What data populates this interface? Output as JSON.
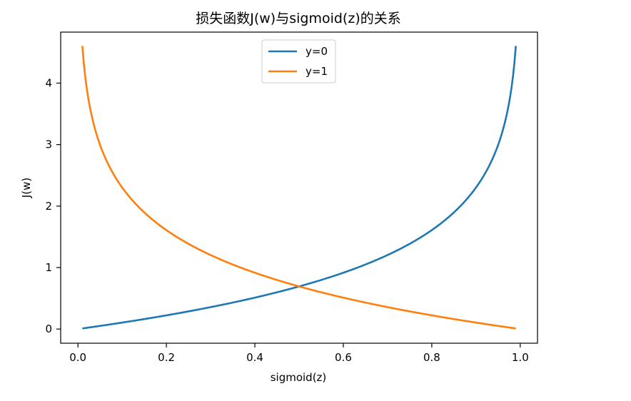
{
  "chart_data": {
    "type": "line",
    "title": "损失函数J(w)与sigmoid(z)的关系",
    "xlabel": "sigmoid(z)",
    "ylabel": "J(w)",
    "xlim": [
      -0.039,
      1.039
    ],
    "ylim": [
      -0.23,
      4.83
    ],
    "xticks": [
      0.0,
      0.2,
      0.4,
      0.6,
      0.8,
      1.0
    ],
    "xtick_labels": [
      "0.0",
      "0.2",
      "0.4",
      "0.6",
      "0.8",
      "1.0"
    ],
    "yticks": [
      0,
      1,
      2,
      3,
      4
    ],
    "ytick_labels": [
      "0",
      "1",
      "2",
      "3",
      "4"
    ],
    "grid": false,
    "legend": {
      "position": "top-center",
      "entries": [
        "y=0",
        "y=1"
      ]
    },
    "x": [
      0.01,
      0.02,
      0.03,
      0.05,
      0.08,
      0.1,
      0.15,
      0.2,
      0.25,
      0.3,
      0.35,
      0.4,
      0.45,
      0.5,
      0.55,
      0.6,
      0.65,
      0.7,
      0.75,
      0.8,
      0.85,
      0.9,
      0.92,
      0.95,
      0.97,
      0.98,
      0.99
    ],
    "series": [
      {
        "name": "y=0",
        "color": "#1f77b4",
        "values": [
          0.01005,
          0.0202,
          0.03046,
          0.05129,
          0.08338,
          0.10536,
          0.16252,
          0.22314,
          0.28768,
          0.35667,
          0.43078,
          0.51083,
          0.59784,
          0.69315,
          0.79851,
          0.91629,
          1.04982,
          1.20397,
          1.38629,
          1.60944,
          1.89712,
          2.30259,
          2.52573,
          2.99573,
          3.50656,
          3.91202,
          4.60517
        ]
      },
      {
        "name": "y=1",
        "color": "#ff7f0e",
        "values": [
          4.60517,
          3.91202,
          3.50656,
          2.99573,
          2.52573,
          2.30259,
          1.89712,
          1.60944,
          1.38629,
          1.20397,
          1.04982,
          0.91629,
          0.79851,
          0.69315,
          0.59784,
          0.51083,
          0.43078,
          0.35667,
          0.28768,
          0.22314,
          0.16252,
          0.10536,
          0.08338,
          0.05129,
          0.03046,
          0.0202,
          0.01005
        ]
      }
    ]
  }
}
